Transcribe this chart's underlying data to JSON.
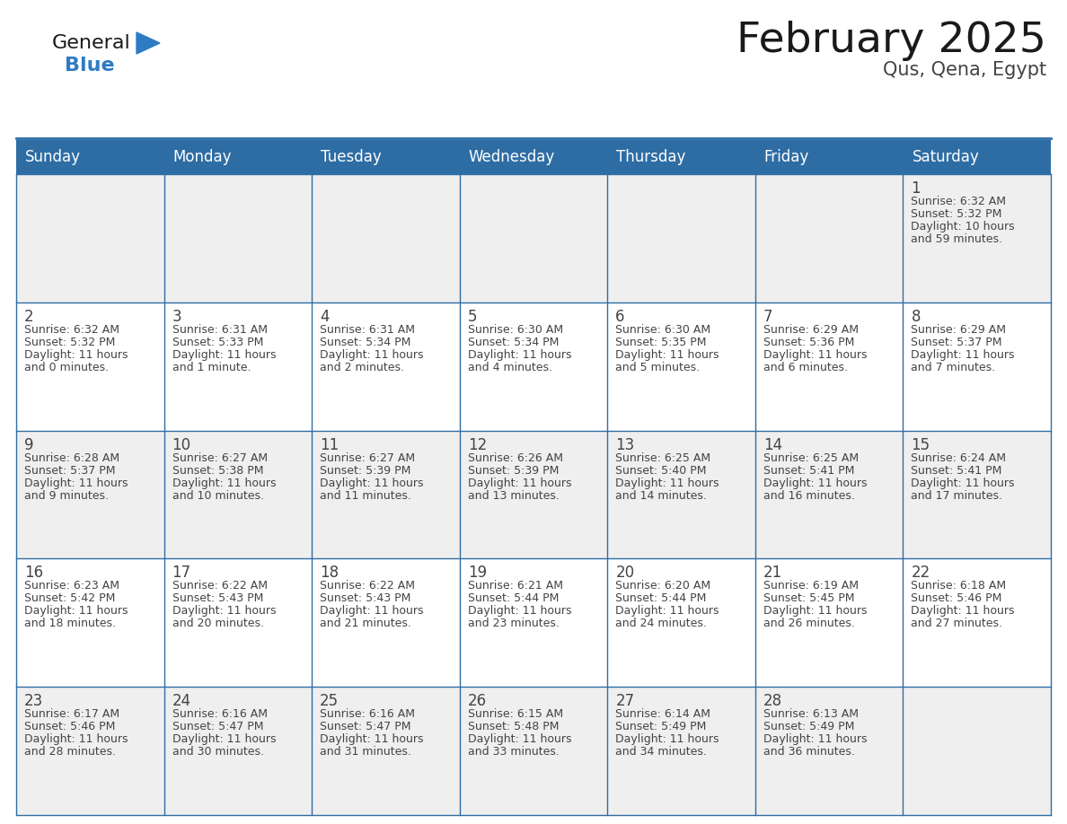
{
  "title": "February 2025",
  "subtitle": "Qus, Qena, Egypt",
  "days_of_week": [
    "Sunday",
    "Monday",
    "Tuesday",
    "Wednesday",
    "Thursday",
    "Friday",
    "Saturday"
  ],
  "header_bg": "#2E6DA4",
  "header_text": "#FFFFFF",
  "cell_bg_odd": "#EFEFEF",
  "cell_bg_even": "#FFFFFF",
  "border_color": "#2E6DA4",
  "text_color": "#444444",
  "day_num_color": "#444444",
  "title_color": "#1a1a1a",
  "subtitle_color": "#444444",
  "logo_general_color": "#1a1a1a",
  "logo_blue_color": "#2E7BC4",
  "weeks": [
    [
      {
        "day": null,
        "info": ""
      },
      {
        "day": null,
        "info": ""
      },
      {
        "day": null,
        "info": ""
      },
      {
        "day": null,
        "info": ""
      },
      {
        "day": null,
        "info": ""
      },
      {
        "day": null,
        "info": ""
      },
      {
        "day": 1,
        "info": "Sunrise: 6:32 AM\nSunset: 5:32 PM\nDaylight: 10 hours\nand 59 minutes."
      }
    ],
    [
      {
        "day": 2,
        "info": "Sunrise: 6:32 AM\nSunset: 5:32 PM\nDaylight: 11 hours\nand 0 minutes."
      },
      {
        "day": 3,
        "info": "Sunrise: 6:31 AM\nSunset: 5:33 PM\nDaylight: 11 hours\nand 1 minute."
      },
      {
        "day": 4,
        "info": "Sunrise: 6:31 AM\nSunset: 5:34 PM\nDaylight: 11 hours\nand 2 minutes."
      },
      {
        "day": 5,
        "info": "Sunrise: 6:30 AM\nSunset: 5:34 PM\nDaylight: 11 hours\nand 4 minutes."
      },
      {
        "day": 6,
        "info": "Sunrise: 6:30 AM\nSunset: 5:35 PM\nDaylight: 11 hours\nand 5 minutes."
      },
      {
        "day": 7,
        "info": "Sunrise: 6:29 AM\nSunset: 5:36 PM\nDaylight: 11 hours\nand 6 minutes."
      },
      {
        "day": 8,
        "info": "Sunrise: 6:29 AM\nSunset: 5:37 PM\nDaylight: 11 hours\nand 7 minutes."
      }
    ],
    [
      {
        "day": 9,
        "info": "Sunrise: 6:28 AM\nSunset: 5:37 PM\nDaylight: 11 hours\nand 9 minutes."
      },
      {
        "day": 10,
        "info": "Sunrise: 6:27 AM\nSunset: 5:38 PM\nDaylight: 11 hours\nand 10 minutes."
      },
      {
        "day": 11,
        "info": "Sunrise: 6:27 AM\nSunset: 5:39 PM\nDaylight: 11 hours\nand 11 minutes."
      },
      {
        "day": 12,
        "info": "Sunrise: 6:26 AM\nSunset: 5:39 PM\nDaylight: 11 hours\nand 13 minutes."
      },
      {
        "day": 13,
        "info": "Sunrise: 6:25 AM\nSunset: 5:40 PM\nDaylight: 11 hours\nand 14 minutes."
      },
      {
        "day": 14,
        "info": "Sunrise: 6:25 AM\nSunset: 5:41 PM\nDaylight: 11 hours\nand 16 minutes."
      },
      {
        "day": 15,
        "info": "Sunrise: 6:24 AM\nSunset: 5:41 PM\nDaylight: 11 hours\nand 17 minutes."
      }
    ],
    [
      {
        "day": 16,
        "info": "Sunrise: 6:23 AM\nSunset: 5:42 PM\nDaylight: 11 hours\nand 18 minutes."
      },
      {
        "day": 17,
        "info": "Sunrise: 6:22 AM\nSunset: 5:43 PM\nDaylight: 11 hours\nand 20 minutes."
      },
      {
        "day": 18,
        "info": "Sunrise: 6:22 AM\nSunset: 5:43 PM\nDaylight: 11 hours\nand 21 minutes."
      },
      {
        "day": 19,
        "info": "Sunrise: 6:21 AM\nSunset: 5:44 PM\nDaylight: 11 hours\nand 23 minutes."
      },
      {
        "day": 20,
        "info": "Sunrise: 6:20 AM\nSunset: 5:44 PM\nDaylight: 11 hours\nand 24 minutes."
      },
      {
        "day": 21,
        "info": "Sunrise: 6:19 AM\nSunset: 5:45 PM\nDaylight: 11 hours\nand 26 minutes."
      },
      {
        "day": 22,
        "info": "Sunrise: 6:18 AM\nSunset: 5:46 PM\nDaylight: 11 hours\nand 27 minutes."
      }
    ],
    [
      {
        "day": 23,
        "info": "Sunrise: 6:17 AM\nSunset: 5:46 PM\nDaylight: 11 hours\nand 28 minutes."
      },
      {
        "day": 24,
        "info": "Sunrise: 6:16 AM\nSunset: 5:47 PM\nDaylight: 11 hours\nand 30 minutes."
      },
      {
        "day": 25,
        "info": "Sunrise: 6:16 AM\nSunset: 5:47 PM\nDaylight: 11 hours\nand 31 minutes."
      },
      {
        "day": 26,
        "info": "Sunrise: 6:15 AM\nSunset: 5:48 PM\nDaylight: 11 hours\nand 33 minutes."
      },
      {
        "day": 27,
        "info": "Sunrise: 6:14 AM\nSunset: 5:49 PM\nDaylight: 11 hours\nand 34 minutes."
      },
      {
        "day": 28,
        "info": "Sunrise: 6:13 AM\nSunset: 5:49 PM\nDaylight: 11 hours\nand 36 minutes."
      },
      {
        "day": null,
        "info": ""
      }
    ]
  ]
}
